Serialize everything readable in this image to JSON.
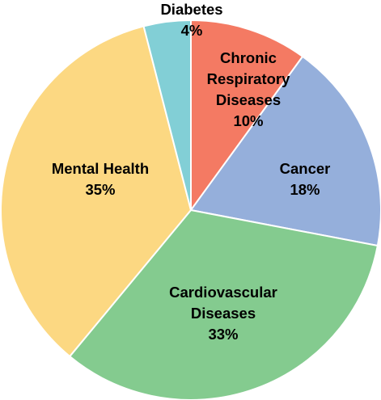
{
  "chart_data": {
    "type": "pie",
    "title": "",
    "start": "top",
    "direction": "clockwise",
    "slices": [
      {
        "name": "Chronic Respiratory Diseases",
        "label_lines": [
          "Chronic",
          "Respiratory",
          "Diseases"
        ],
        "value": 10,
        "display": "10%",
        "color": "#f47a63"
      },
      {
        "name": "Cancer",
        "label_lines": [
          "Cancer"
        ],
        "value": 18,
        "display": "18%",
        "color": "#95afdb"
      },
      {
        "name": "Cardiovascular Diseases",
        "label_lines": [
          "Cardiovascular",
          "Diseases"
        ],
        "value": 33,
        "display": "33%",
        "color": "#84cb8f"
      },
      {
        "name": "Mental Health",
        "label_lines": [
          "Mental Health"
        ],
        "value": 35,
        "display": "35%",
        "color": "#fcd882"
      },
      {
        "name": "Diabetes",
        "label_lines": [
          "Diabetes"
        ],
        "value": 4,
        "display": "4%",
        "color": "#82cfd6"
      }
    ]
  }
}
